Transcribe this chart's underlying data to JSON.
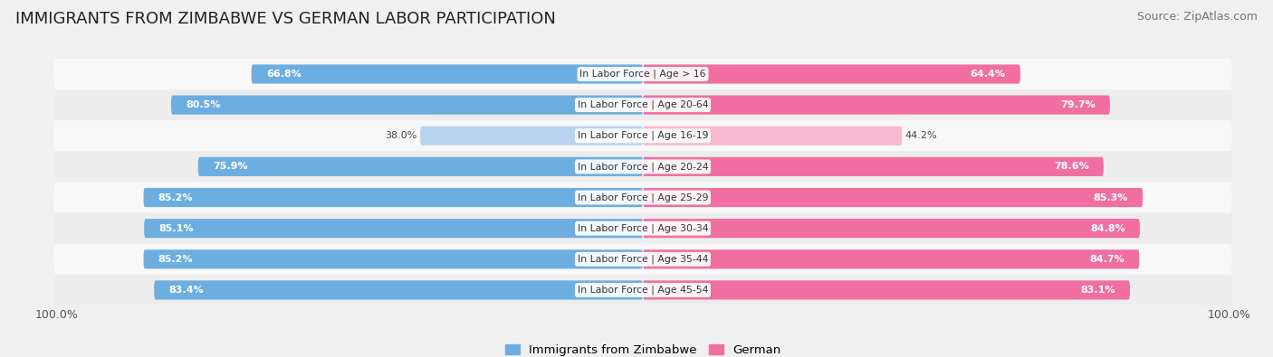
{
  "title": "IMMIGRANTS FROM ZIMBABWE VS GERMAN LABOR PARTICIPATION",
  "source": "Source: ZipAtlas.com",
  "categories": [
    "In Labor Force | Age > 16",
    "In Labor Force | Age 20-64",
    "In Labor Force | Age 16-19",
    "In Labor Force | Age 20-24",
    "In Labor Force | Age 25-29",
    "In Labor Force | Age 30-34",
    "In Labor Force | Age 35-44",
    "In Labor Force | Age 45-54"
  ],
  "zimbabwe_values": [
    66.8,
    80.5,
    38.0,
    75.9,
    85.2,
    85.1,
    85.2,
    83.4
  ],
  "german_values": [
    64.4,
    79.7,
    44.2,
    78.6,
    85.3,
    84.8,
    84.7,
    83.1
  ],
  "zimbabwe_color_full": "#6daee0",
  "zimbabwe_color_light": "#b8d4f0",
  "german_color_full": "#f06fa0",
  "german_color_light": "#f8b8d0",
  "bg_color": "#f0f0f0",
  "row_bg_colors": [
    "#f8f8f8",
    "#ededee"
  ],
  "legend_zimbabwe": "Immigrants from Zimbabwe",
  "legend_german": "German",
  "title_fontsize": 13,
  "source_fontsize": 9,
  "bar_fontsize": 8,
  "cat_fontsize": 7.8,
  "tick_fontsize": 9,
  "max_value": 100.0,
  "low_threshold": 60.0
}
